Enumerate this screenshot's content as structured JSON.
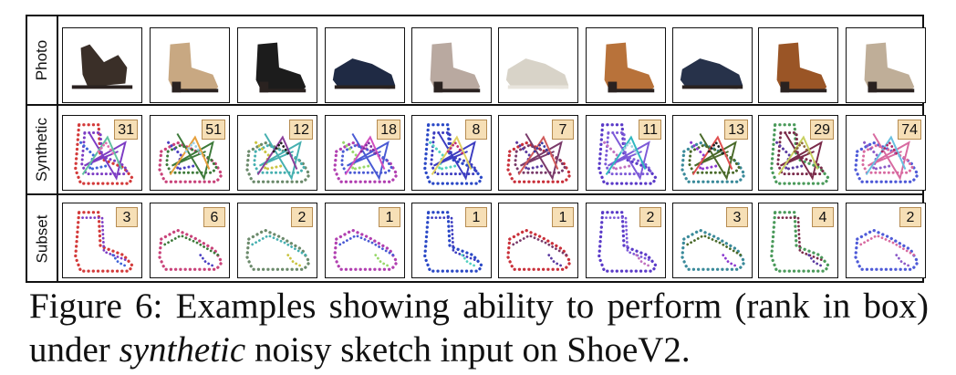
{
  "figure": {
    "row_labels": {
      "photo": "Photo",
      "synthetic": "Synthetic",
      "subset": "Subset"
    },
    "columns": [
      {
        "photo": "sandal-wedge-shoe",
        "synthetic_rank": "31",
        "subset_rank": "3"
      },
      {
        "photo": "tan-buckle-ankle-boot",
        "synthetic_rank": "51",
        "subset_rank": "6"
      },
      {
        "photo": "black-buckle-ankle-boot",
        "synthetic_rank": "12",
        "subset_rank": "2"
      },
      {
        "photo": "navy-lace-up-sneaker",
        "synthetic_rank": "18",
        "subset_rank": "1"
      },
      {
        "photo": "grey-cutout-ankle-boot",
        "synthetic_rank": "8",
        "subset_rank": "1"
      },
      {
        "photo": "beige-canvas-shoe",
        "synthetic_rank": "7",
        "subset_rank": "1"
      },
      {
        "photo": "tan-lace-ankle-boot",
        "synthetic_rank": "11",
        "subset_rank": "2"
      },
      {
        "photo": "navy-suede-derby-shoe",
        "synthetic_rank": "13",
        "subset_rank": "3"
      },
      {
        "photo": "brown-chelsea-boot",
        "synthetic_rank": "29",
        "subset_rank": "4"
      },
      {
        "photo": "taupe-studded-boot",
        "synthetic_rank": "74",
        "subset_rank": "2"
      }
    ]
  },
  "caption": {
    "prefix": "Figure 6:  Examples showing ability to perform (rank in box) under ",
    "emphasis": "synthetic",
    "suffix": " noisy sketch input on ShoeV2."
  }
}
